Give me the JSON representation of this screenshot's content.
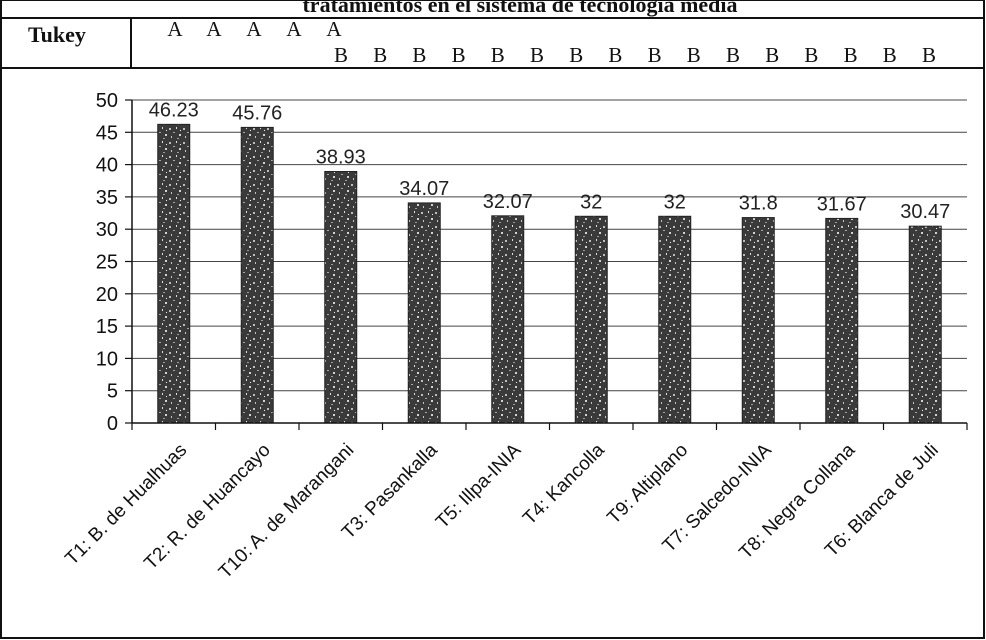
{
  "title": "tratamientos en el sistema de tecnología media",
  "tukey": {
    "label": "Tukey",
    "row1": [
      "A",
      "A",
      "A",
      "A",
      "A"
    ],
    "row2": [
      "B",
      "B",
      "B",
      "B",
      "B",
      "B",
      "B",
      "B",
      "B",
      "B",
      "B",
      "B",
      "B",
      "B",
      "B",
      "B"
    ]
  },
  "chart_data": {
    "type": "bar",
    "categories": [
      "T1: B. de Hualhuas",
      "T2: R. de Huancayo",
      "T10: A. de Marangani",
      "T3: Pasankalla",
      "T5: Illpa-INIA",
      "T4: Kancolla",
      "T9: Altiplano",
      "T7: Salcedo-INIA",
      "T8: Negra Collana",
      "T6: Blanca de Juli"
    ],
    "values": [
      46.23,
      45.76,
      38.93,
      34.07,
      32.07,
      32,
      32,
      31.8,
      31.67,
      30.47
    ],
    "data_labels": [
      "46.23",
      "45.76",
      "38.93",
      "34.07",
      "32.07",
      "32",
      "32",
      "31.8",
      "31.67",
      "30.47"
    ],
    "ylim": [
      0,
      50
    ],
    "yticks": [
      0,
      5,
      10,
      15,
      20,
      25,
      30,
      35,
      40,
      45,
      50
    ],
    "grid": true,
    "bar_color": "#3a3a3a",
    "xlabel": "",
    "ylabel": ""
  }
}
